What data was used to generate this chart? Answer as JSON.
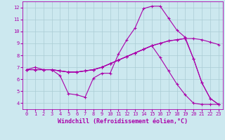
{
  "xlabel": "Windchill (Refroidissement éolien,°C)",
  "background_color": "#cce8ef",
  "grid_color": "#aaccd4",
  "line_color": "#aa00aa",
  "xlim": [
    -0.5,
    23.5
  ],
  "ylim": [
    3.5,
    12.5
  ],
  "xticks": [
    0,
    1,
    2,
    3,
    4,
    5,
    6,
    7,
    8,
    9,
    10,
    11,
    12,
    13,
    14,
    15,
    16,
    17,
    18,
    19,
    20,
    21,
    22,
    23
  ],
  "yticks": [
    4,
    5,
    6,
    7,
    8,
    9,
    10,
    11,
    12
  ],
  "series": [
    [
      6.8,
      7.0,
      6.8,
      6.8,
      6.3,
      4.8,
      4.7,
      4.5,
      6.1,
      6.5,
      6.5,
      8.1,
      9.3,
      10.3,
      11.9,
      12.1,
      12.1,
      11.1,
      10.1,
      9.5,
      7.7,
      5.7,
      4.4,
      3.9
    ],
    [
      6.8,
      6.8,
      6.8,
      6.8,
      6.7,
      6.6,
      6.6,
      6.7,
      6.8,
      7.0,
      7.3,
      7.6,
      7.9,
      8.2,
      8.5,
      8.8,
      9.0,
      9.2,
      9.3,
      9.4,
      9.4,
      9.3,
      9.1,
      8.9
    ],
    [
      6.8,
      6.8,
      6.8,
      6.8,
      6.7,
      6.6,
      6.6,
      6.7,
      6.8,
      7.0,
      7.3,
      7.6,
      7.9,
      8.2,
      8.5,
      8.8,
      7.8,
      6.7,
      5.6,
      4.7,
      4.0,
      3.9,
      3.9,
      3.9
    ],
    [
      6.8,
      6.8,
      6.8,
      6.8,
      6.7,
      6.6,
      6.6,
      6.7,
      6.8,
      7.0,
      7.3,
      7.6,
      7.9,
      8.2,
      8.5,
      8.8,
      9.0,
      9.2,
      9.3,
      9.4,
      7.7,
      5.7,
      4.4,
      3.9
    ]
  ],
  "marker": "+",
  "markersize": 3.5,
  "linewidth": 0.8,
  "tick_fontsize": 5.0,
  "xlabel_fontsize": 6.0
}
